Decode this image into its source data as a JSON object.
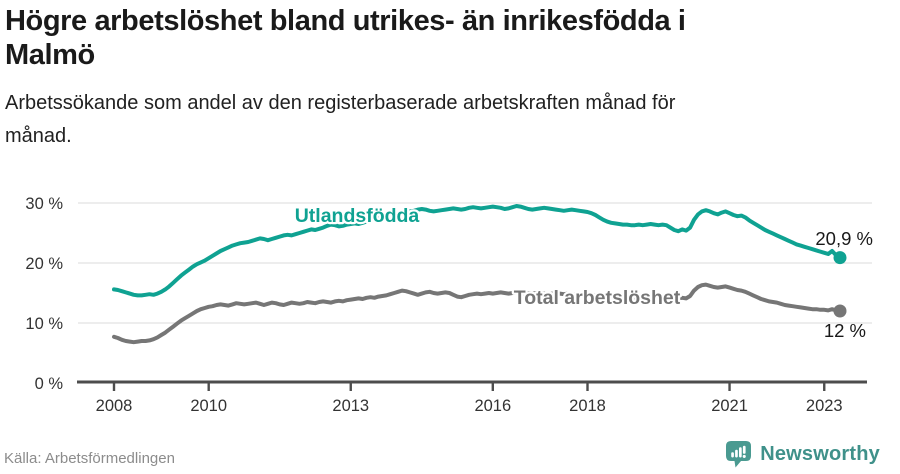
{
  "header": {
    "title_line1": "Högre arbetslöshet bland utrikes- än inrikesfödda i",
    "title_line2": "Malmö",
    "subtitle_line1": "Arbetssökande som andel av den registerbaserade arbetskraften månad för",
    "subtitle_line2": "månad."
  },
  "footer": {
    "source": "Källa: Arbetsförmedlingen",
    "brand": "Newsworthy"
  },
  "colors": {
    "teal_line": "#0fa292",
    "gray_line": "#767676",
    "axis": "#4d4d4d",
    "gridline": "#e2e2e2",
    "brand_teal": "#3f918a"
  },
  "chart_data": {
    "type": "line",
    "unit": "%",
    "frequency": "monthly",
    "x_start": "2008-01",
    "x_end": "2023-05",
    "grid": "horizontal",
    "ylim": [
      0,
      32
    ],
    "yticks": [
      0,
      10,
      20,
      30
    ],
    "ytick_labels": [
      "0 %",
      "10 %",
      "20 %",
      "30 %"
    ],
    "xticks": [
      2008,
      2010,
      2013,
      2016,
      2018,
      2021,
      2023
    ],
    "xtick_labels": [
      "2008",
      "2010",
      "2013",
      "2016",
      "2018",
      "2021",
      "2023"
    ],
    "series": [
      {
        "name": "Utlandsfödda",
        "color": "#0fa292",
        "end_label": "20,9 %",
        "end_value": 20.9,
        "values": [
          15.6,
          15.5,
          15.3,
          15.1,
          14.9,
          14.7,
          14.6,
          14.6,
          14.7,
          14.8,
          14.7,
          14.9,
          15.2,
          15.6,
          16.1,
          16.7,
          17.3,
          17.9,
          18.4,
          18.9,
          19.4,
          19.8,
          20.1,
          20.4,
          20.8,
          21.2,
          21.6,
          22.0,
          22.3,
          22.6,
          22.9,
          23.1,
          23.3,
          23.4,
          23.5,
          23.7,
          23.9,
          24.1,
          24.0,
          23.8,
          24.0,
          24.2,
          24.4,
          24.6,
          24.7,
          24.6,
          24.8,
          25.0,
          25.2,
          25.4,
          25.6,
          25.5,
          25.7,
          25.9,
          26.2,
          26.4,
          26.3,
          26.1,
          26.2,
          26.4,
          26.5,
          26.6,
          26.5,
          26.7,
          26.9,
          27.1,
          27.3,
          27.5,
          27.6,
          27.7,
          27.8,
          28.0,
          28.1,
          28.3,
          28.4,
          28.6,
          28.7,
          28.9,
          29.0,
          28.9,
          28.7,
          28.6,
          28.7,
          28.8,
          28.9,
          29.0,
          29.1,
          29.0,
          28.9,
          29.0,
          29.2,
          29.3,
          29.2,
          29.1,
          29.2,
          29.3,
          29.4,
          29.3,
          29.2,
          29.0,
          29.1,
          29.3,
          29.5,
          29.4,
          29.2,
          29.0,
          28.9,
          29.0,
          29.1,
          29.2,
          29.1,
          29.0,
          28.9,
          28.8,
          28.7,
          28.8,
          28.9,
          28.8,
          28.7,
          28.6,
          28.5,
          28.3,
          28.0,
          27.6,
          27.2,
          26.9,
          26.7,
          26.6,
          26.5,
          26.4,
          26.4,
          26.3,
          26.3,
          26.4,
          26.3,
          26.4,
          26.5,
          26.4,
          26.3,
          26.4,
          26.3,
          25.9,
          25.5,
          25.3,
          25.6,
          25.4,
          25.9,
          27.2,
          28.1,
          28.6,
          28.8,
          28.6,
          28.3,
          28.1,
          28.4,
          28.6,
          28.3,
          28.0,
          27.8,
          27.9,
          27.6,
          27.1,
          26.7,
          26.3,
          25.9,
          25.5,
          25.2,
          24.9,
          24.6,
          24.3,
          24.0,
          23.7,
          23.4,
          23.1,
          22.9,
          22.7,
          22.5,
          22.3,
          22.1,
          21.9,
          21.7,
          21.5,
          22.0,
          21.3,
          20.9
        ]
      },
      {
        "name": "Total arbetslöshet",
        "color": "#767676",
        "end_label": "12 %",
        "end_value": 12.0,
        "values": [
          7.7,
          7.5,
          7.2,
          7.0,
          6.9,
          6.8,
          6.9,
          7.0,
          7.0,
          7.1,
          7.3,
          7.6,
          8.0,
          8.4,
          8.9,
          9.4,
          9.9,
          10.4,
          10.8,
          11.2,
          11.6,
          12.0,
          12.3,
          12.5,
          12.7,
          12.8,
          13.0,
          13.1,
          13.0,
          12.9,
          13.1,
          13.3,
          13.2,
          13.1,
          13.2,
          13.3,
          13.4,
          13.2,
          13.0,
          13.2,
          13.4,
          13.3,
          13.1,
          13.0,
          13.2,
          13.4,
          13.3,
          13.2,
          13.3,
          13.5,
          13.4,
          13.3,
          13.5,
          13.6,
          13.5,
          13.4,
          13.6,
          13.7,
          13.6,
          13.8,
          13.9,
          14.0,
          14.1,
          14.0,
          14.2,
          14.3,
          14.2,
          14.4,
          14.5,
          14.6,
          14.8,
          15.0,
          15.2,
          15.4,
          15.3,
          15.1,
          14.9,
          14.7,
          14.9,
          15.1,
          15.2,
          15.0,
          14.9,
          15.0,
          15.1,
          15.0,
          14.7,
          14.4,
          14.3,
          14.5,
          14.7,
          14.8,
          14.9,
          14.8,
          14.9,
          15.0,
          14.9,
          15.0,
          15.1,
          15.0,
          14.9,
          15.0,
          15.1,
          15.0,
          14.9,
          15.0,
          14.9,
          15.0,
          15.0,
          14.9,
          14.8,
          14.9,
          15.0,
          14.9,
          14.8,
          14.9,
          14.8,
          14.7,
          14.8,
          14.7,
          14.6,
          14.7,
          14.6,
          14.5,
          14.6,
          14.5,
          14.4,
          14.5,
          14.4,
          14.3,
          14.4,
          14.3,
          14.2,
          14.3,
          14.2,
          14.1,
          14.2,
          14.3,
          14.2,
          14.1,
          14.0,
          13.9,
          14.0,
          14.1,
          14.2,
          14.1,
          14.5,
          15.4,
          16.0,
          16.3,
          16.4,
          16.2,
          16.0,
          15.9,
          16.0,
          16.1,
          15.9,
          15.7,
          15.5,
          15.4,
          15.2,
          14.9,
          14.6,
          14.3,
          14.0,
          13.8,
          13.6,
          13.5,
          13.4,
          13.2,
          13.0,
          12.9,
          12.8,
          12.7,
          12.6,
          12.5,
          12.4,
          12.3,
          12.3,
          12.2,
          12.2,
          12.1,
          12.3,
          12.1,
          12.0
        ]
      }
    ]
  }
}
